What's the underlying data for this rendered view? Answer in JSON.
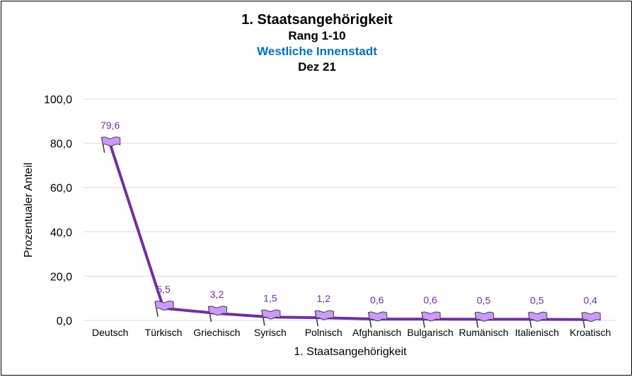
{
  "chart_data": {
    "type": "line",
    "title": "1. Staatsangehörigkeit",
    "subtitle_1": "Rang 1-10",
    "subtitle_2": "Westliche Innenstadt",
    "subtitle_3": "Dez 21",
    "xlabel": "1. Staatsangehörigkeit",
    "ylabel": "Prozentualer Anteil",
    "ylim": [
      0,
      100
    ],
    "yticks": [
      "0,0",
      "20,0",
      "40,0",
      "60,0",
      "80,0",
      "100,0"
    ],
    "grid": true,
    "legend": "none",
    "categories": [
      "Deutsch",
      "Türkisch",
      "Griechisch",
      "Syrisch",
      "Polnisch",
      "Afghanisch",
      "Bulgarisch",
      "Rumänisch",
      "Italienisch",
      "Kroatisch"
    ],
    "values": [
      79.6,
      5.5,
      3.2,
      1.5,
      1.2,
      0.6,
      0.6,
      0.5,
      0.5,
      0.4
    ],
    "data_labels": [
      "79,6",
      "5,5",
      "3,2",
      "1,5",
      "1,2",
      "0,6",
      "0,6",
      "0,5",
      "0,5",
      "0,4"
    ],
    "marker": "flag-icon",
    "colors": {
      "line": "#7030A0",
      "marker_fill": "#CC99FF",
      "label": "#7030A0",
      "subtitle": "#0070C0",
      "grid": "#D9D9D9"
    }
  }
}
